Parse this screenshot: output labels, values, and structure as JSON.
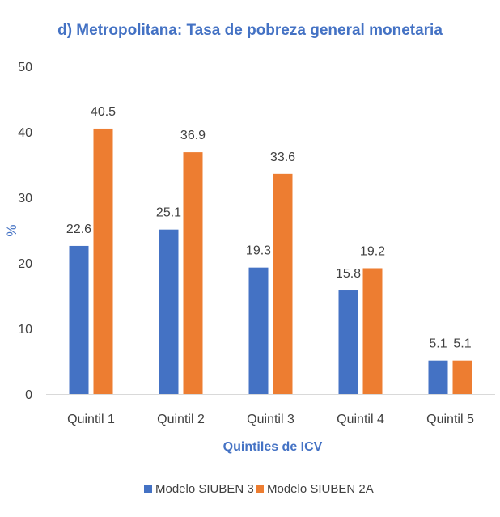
{
  "chart_data": {
    "type": "bar",
    "title": "d) Metropolitana: Tasa de pobreza general monetaria",
    "xlabel": "Quintiles de ICV",
    "ylabel": "%",
    "categories": [
      "Quintil 1",
      "Quintil 2",
      "Quintil 3",
      "Quintil 4",
      "Quintil 5"
    ],
    "series": [
      {
        "name": "Modelo SIUBEN 3",
        "color": "#4472C4",
        "values": [
          22.6,
          25.1,
          19.3,
          15.8,
          5.1
        ]
      },
      {
        "name": "Modelo SIUBEN 2A",
        "color": "#ED7D31",
        "values": [
          40.5,
          36.9,
          33.6,
          19.2,
          5.1
        ]
      }
    ],
    "ylim": [
      0,
      50
    ],
    "yticks": [
      0,
      10,
      20,
      30,
      40,
      50
    ],
    "grid": false,
    "legend": "bottom",
    "title_color": "#4472C4",
    "axis_title_color": "#4472C4",
    "text_color": "#404040"
  }
}
